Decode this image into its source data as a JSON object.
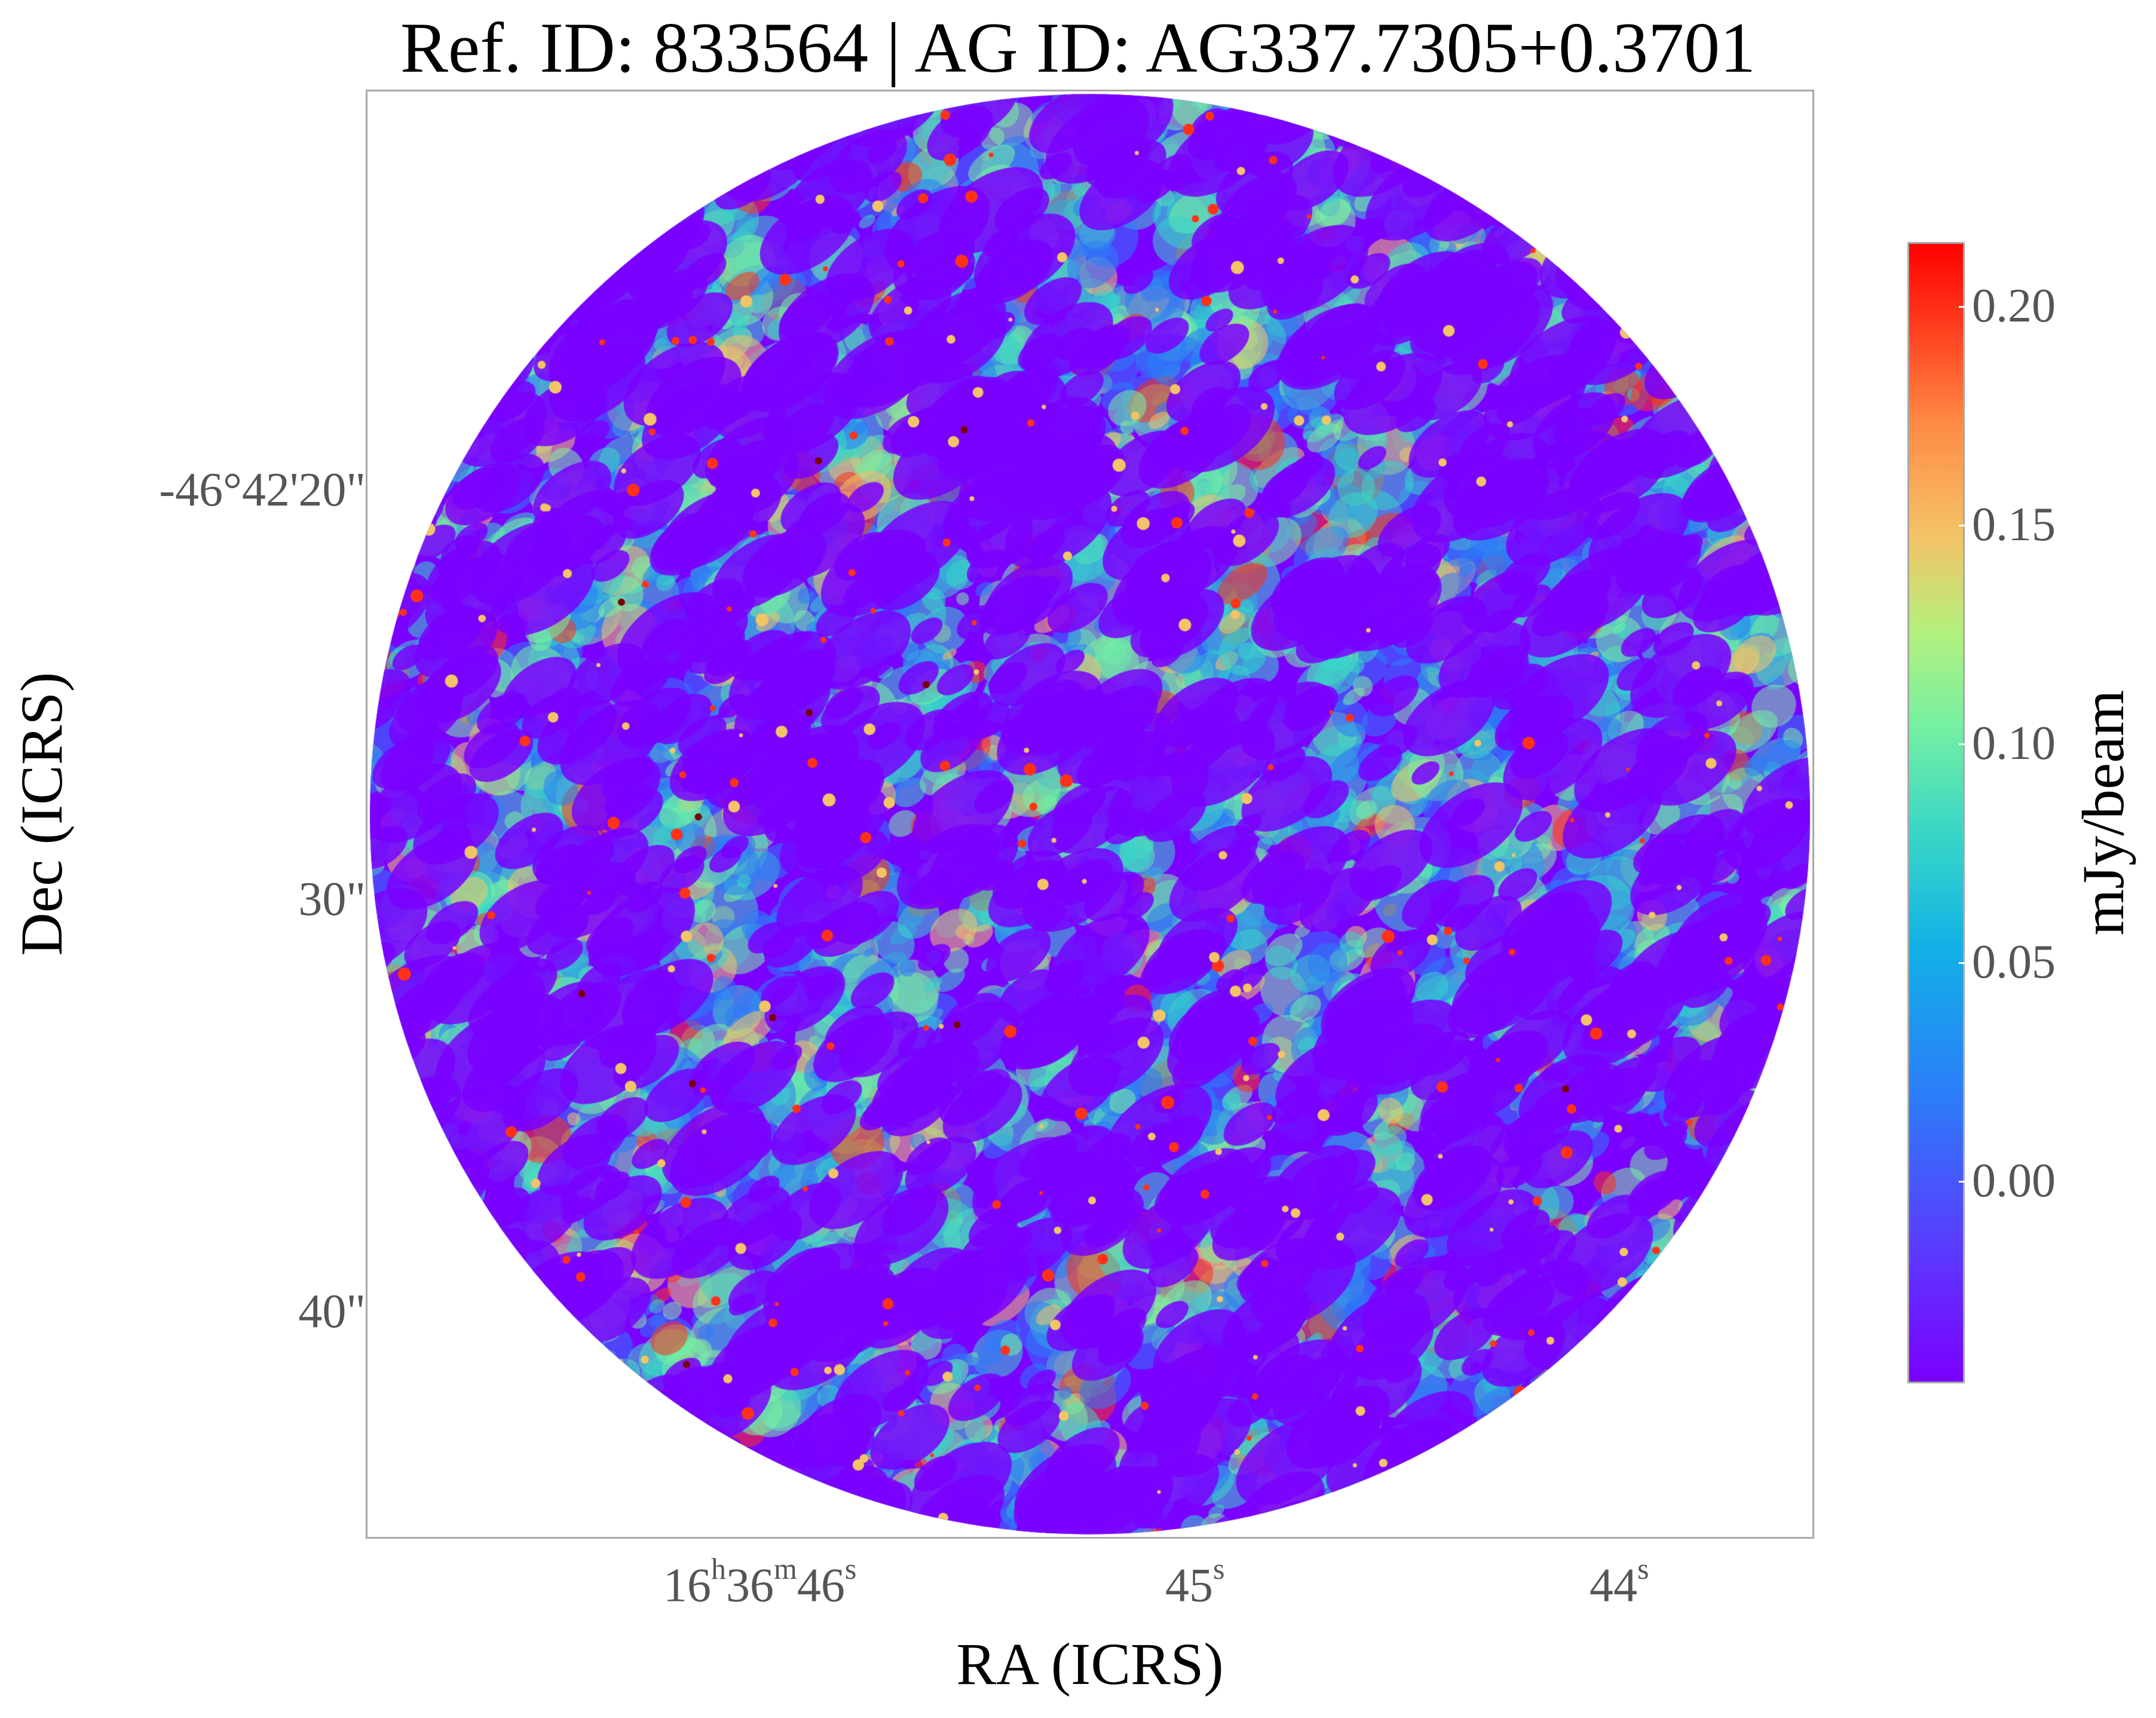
{
  "title": "Ref. ID: 833564 | AG ID: AG337.7305+0.3701",
  "axes": {
    "xlabel": "RA (ICRS)",
    "ylabel": "Dec (ICRS)",
    "yticks": [
      "-46°42'20\"",
      "30\"",
      "40\""
    ],
    "xticks": [
      {
        "main": "16",
        "sup1": "h",
        "mid": "36",
        "sup2": "m",
        "end": "46",
        "sup3": "s"
      },
      {
        "main": "45",
        "sup": "s"
      },
      {
        "main": "44",
        "sup": "s"
      }
    ]
  },
  "colorbar": {
    "label": "mJy/beam",
    "ticks": [
      "0.20",
      "0.15",
      "0.10",
      "0.05",
      "0.00"
    ],
    "colormap": "rainbow",
    "colors": [
      "#7a00ff",
      "#2c7cf8",
      "#37d6c8",
      "#78f0a0",
      "#f2c468",
      "#ff3218",
      "#ff0000"
    ]
  }
}
